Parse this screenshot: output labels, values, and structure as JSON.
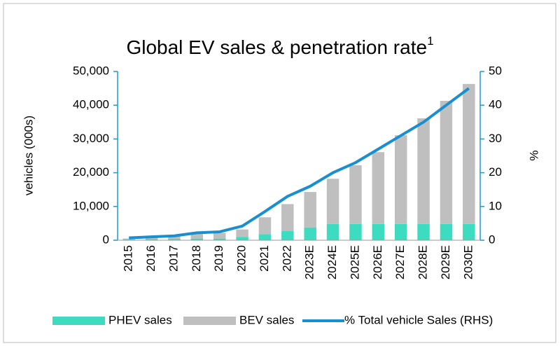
{
  "chart_data": {
    "type": "bar",
    "stacked": true,
    "title": "Global EV sales & penetration rate",
    "title_footnote": "1",
    "y_label": "vehicles (000s)",
    "y2_label": "%",
    "categories": [
      "2015",
      "2016",
      "2017",
      "2018",
      "2019",
      "2020",
      "2021",
      "2022",
      "2023E",
      "2024E",
      "2025E",
      "2026E",
      "2027E",
      "2028E",
      "2029E",
      "2030E"
    ],
    "series": [
      {
        "name": "PHEV sales",
        "type": "bar",
        "color": "#3ddcc0",
        "values": [
          200,
          300,
          400,
          500,
          500,
          1000,
          1800,
          2700,
          3800,
          4800,
          4800,
          4800,
          4800,
          4800,
          4800,
          4800
        ]
      },
      {
        "name": "BEV sales",
        "type": "bar",
        "color": "#bfbfbf",
        "values": [
          300,
          450,
          800,
          1500,
          1700,
          2200,
          5000,
          8000,
          10500,
          13400,
          17400,
          21300,
          26300,
          31300,
          36500,
          41500
        ]
      },
      {
        "name": "% Total vehicle Sales (RHS)",
        "type": "line",
        "axis": "y2",
        "color": "#1a8fd0",
        "values": [
          0.7,
          1,
          1.3,
          2.2,
          2.5,
          4.2,
          8.5,
          13,
          16,
          20,
          23,
          27,
          31,
          35,
          40,
          45
        ]
      }
    ],
    "ylim": [
      0,
      50000
    ],
    "yticks": [
      {
        "value": 0,
        "label": "0"
      },
      {
        "value": 10000,
        "label": "10,000"
      },
      {
        "value": 20000,
        "label": "20,000"
      },
      {
        "value": 30000,
        "label": "30,000"
      },
      {
        "value": 40000,
        "label": "40,000"
      },
      {
        "value": 50000,
        "label": "50,000"
      }
    ],
    "y2lim": [
      0,
      50
    ],
    "y2ticks": [
      0,
      10,
      20,
      30,
      40,
      50
    ],
    "axis_color": "#1a9bd7",
    "grid": false
  }
}
